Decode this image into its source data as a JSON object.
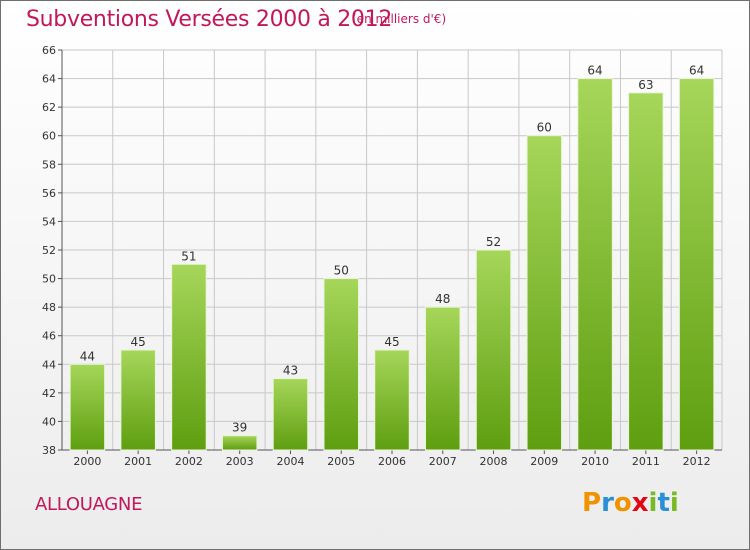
{
  "title": "Subventions Versées 2000 à 2012",
  "subtitle": "(en milliers d'€)",
  "commune": "ALLOUAGNE",
  "brand": {
    "letters": [
      "P",
      "r",
      "o",
      "x",
      "i",
      "t",
      "i"
    ],
    "colors": [
      "#f39200",
      "#2a8fd6",
      "#f39200",
      "#e30613",
      "#79b928",
      "#2a8fd6",
      "#79b928"
    ]
  },
  "colors": {
    "bar_top": "#a6d65a",
    "bar_bottom": "#5e9e10",
    "title": "#c2185b",
    "grid": "#c8c8c8"
  },
  "chart_data": {
    "type": "bar",
    "categories": [
      "2000",
      "2001",
      "2002",
      "2003",
      "2004",
      "2005",
      "2006",
      "2007",
      "2008",
      "2009",
      "2010",
      "2011",
      "2012"
    ],
    "values": [
      44,
      45,
      51,
      39,
      43,
      50,
      45,
      48,
      52,
      60,
      64,
      63,
      64
    ],
    "ylim": [
      38,
      66
    ],
    "yticks": [
      38,
      40,
      42,
      44,
      46,
      48,
      50,
      52,
      54,
      56,
      58,
      60,
      62,
      64,
      66
    ],
    "grid": true,
    "data_labels": true
  }
}
